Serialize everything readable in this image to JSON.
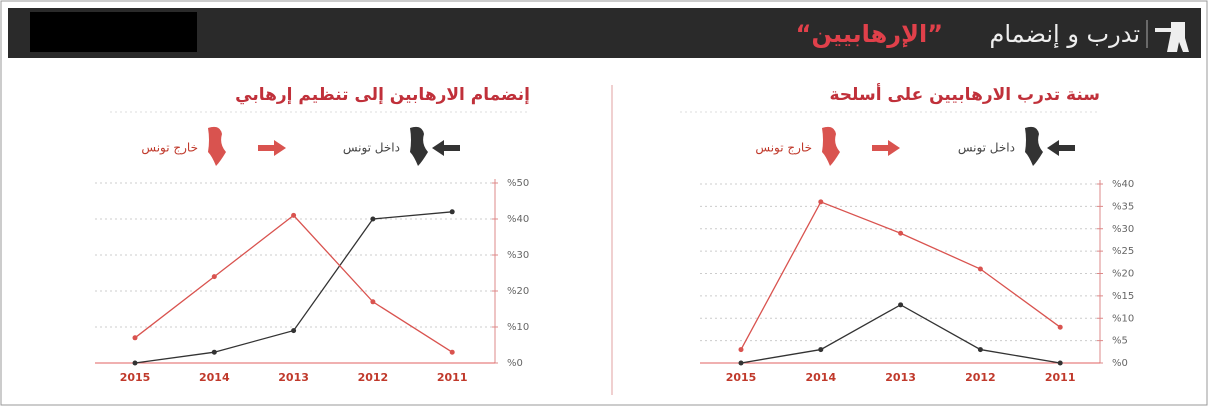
{
  "header": {
    "title": "تدرب و إنضمام",
    "highlight": "“الإرهابيين”"
  },
  "chart_data": [
    {
      "type": "line",
      "title": "إنضمام الارهابين إلى تنظيم إرهابي",
      "categories": [
        "2015",
        "2014",
        "2013",
        "2012",
        "2011"
      ],
      "series": [
        {
          "name": "داخل تونس",
          "color": "#333333",
          "values": [
            0,
            3,
            9,
            40,
            42
          ]
        },
        {
          "name": "خارج تونس",
          "color": "#d9534f",
          "values": [
            7,
            24,
            41,
            17,
            3
          ]
        }
      ],
      "ylim": [
        0,
        50
      ],
      "yticks": [
        {
          "value": 0,
          "label": "%0"
        },
        {
          "value": 10,
          "label": "%10"
        },
        {
          "value": 20,
          "label": "%20"
        },
        {
          "value": 30,
          "label": "%30"
        },
        {
          "value": 40,
          "label": "%40"
        },
        {
          "value": 50,
          "label": "%50"
        }
      ],
      "grid": true
    },
    {
      "type": "line",
      "title": "سنة تدرب الارهابيين على أسلحة",
      "categories": [
        "2015",
        "2014",
        "2013",
        "2012",
        "2011"
      ],
      "series": [
        {
          "name": "داخل تونس",
          "color": "#333333",
          "values": [
            0,
            3,
            13,
            3,
            0
          ]
        },
        {
          "name": "خارج تونس",
          "color": "#d9534f",
          "values": [
            3,
            36,
            29,
            21,
            8
          ]
        }
      ],
      "ylim": [
        0,
        40
      ],
      "yticks": [
        {
          "value": 0,
          "label": "%0"
        },
        {
          "value": 5,
          "label": "%5"
        },
        {
          "value": 10,
          "label": "%10"
        },
        {
          "value": 15,
          "label": "%15"
        },
        {
          "value": 20,
          "label": "%20"
        },
        {
          "value": 25,
          "label": "%25"
        },
        {
          "value": 30,
          "label": "%30"
        },
        {
          "value": 35,
          "label": "%35"
        },
        {
          "value": 40,
          "label": "%40"
        }
      ],
      "grid": true
    }
  ]
}
